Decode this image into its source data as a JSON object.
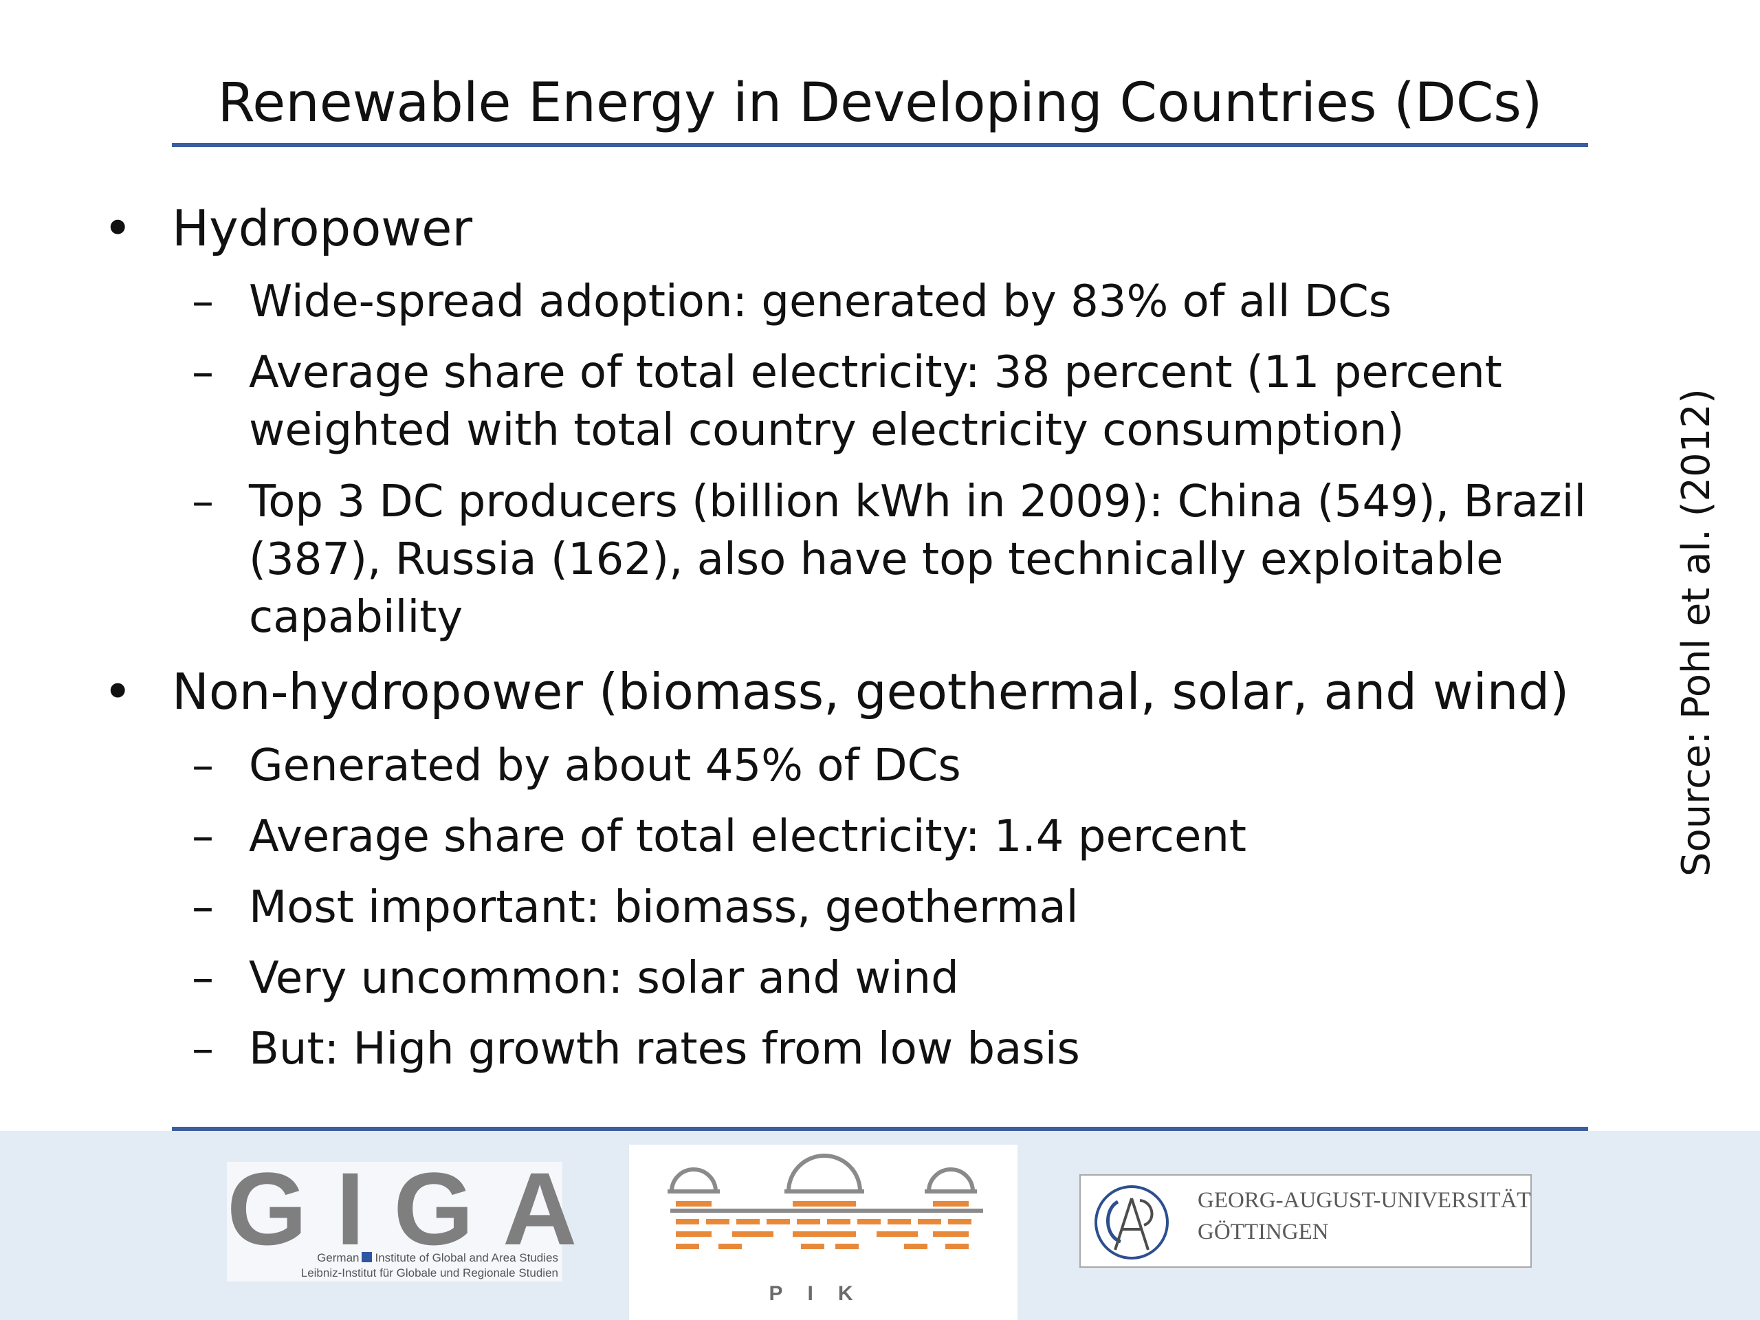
{
  "slide": {
    "title": "Renewable Energy in Developing Countries (DCs)",
    "source": "Source: Pohl et al. (2012)",
    "bullet_char": "•",
    "dash_char": "–",
    "sections": [
      {
        "heading": "Hydropower",
        "items": [
          "Wide-spread adoption: generated by 83% of all DCs",
          "Average share of total electricity: 38 percent (11 percent weighted with total country electricity consumption)",
          "Top 3 DC producers (billion kWh in 2009): China (549), Brazil (387), Russia (162), also have top technically exploitable capability"
        ]
      },
      {
        "heading": "Non-hydropower (biomass, geothermal, solar, and wind)",
        "items": [
          "Generated by about 45% of DCs",
          "Average share of total electricity: 1.4 percent",
          "Most important: biomass, geothermal",
          "Very uncommon: solar and wind",
          "But: High growth rates from low basis"
        ]
      }
    ]
  },
  "footer": {
    "giga": {
      "letters": "GIGA",
      "line1_prefix": "German",
      "line1_rest": "Institute of Global and Area Studies",
      "line2": "Leibniz-Institut für Globale und Regionale Studien"
    },
    "pik": {
      "letters": "PIK",
      "accent_color": "#e8893a"
    },
    "goettingen": {
      "line1": "GEORG-AUGUST-UNIVERSITÄT",
      "line2": "GÖTTINGEN"
    }
  },
  "colors": {
    "rule": "#3d5e9e",
    "footer_bg": "#e3ebf4",
    "giga_square": "#2d56a3"
  }
}
